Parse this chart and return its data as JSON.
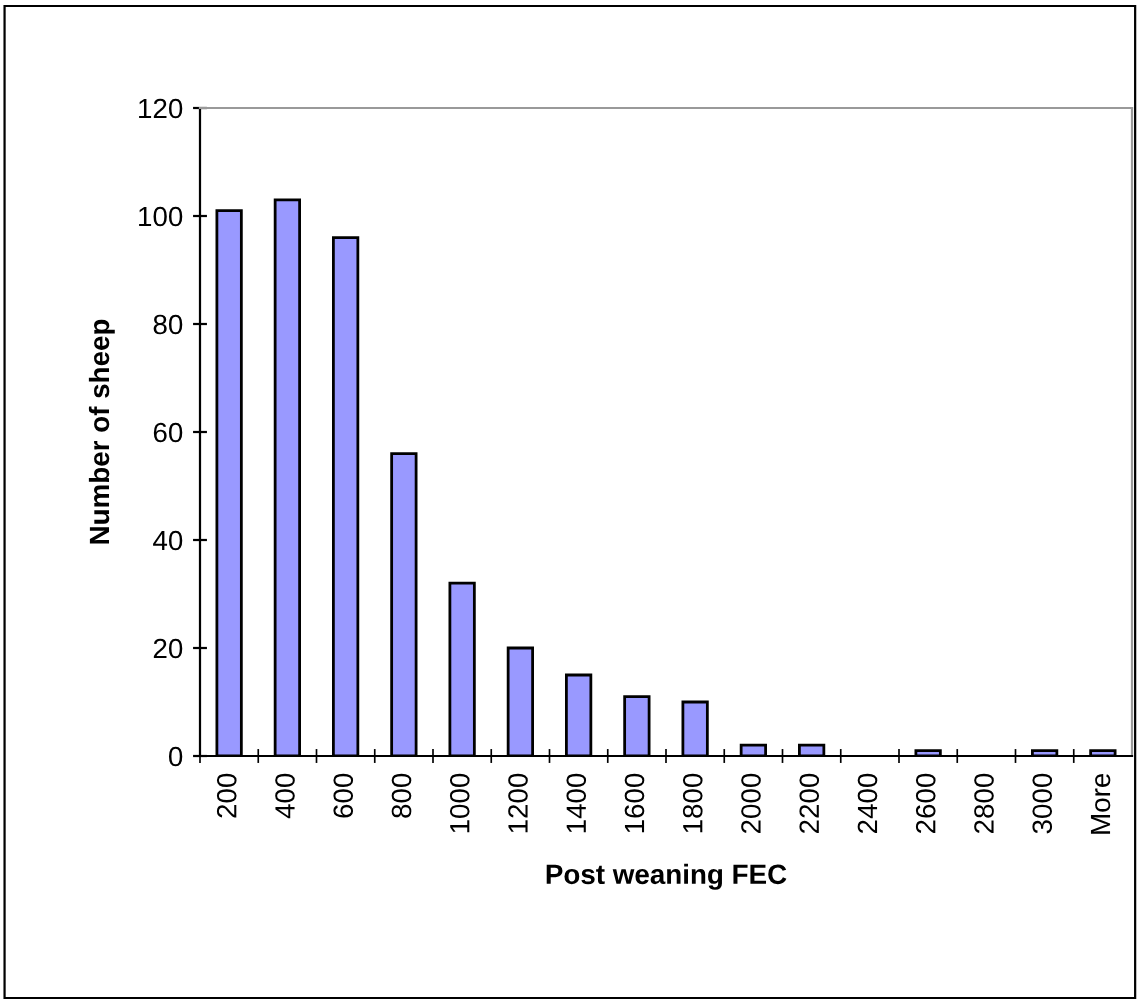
{
  "chart_data": {
    "type": "bar",
    "xlabel": "Post weaning FEC",
    "ylabel": "Number of sheep",
    "categories": [
      "200",
      "400",
      "600",
      "800",
      "1000",
      "1200",
      "1400",
      "1600",
      "1800",
      "2000",
      "2200",
      "2400",
      "2600",
      "2800",
      "3000",
      "More"
    ],
    "values": [
      101,
      103,
      96,
      56,
      32,
      20,
      15,
      11,
      10,
      2,
      2,
      0,
      1,
      0,
      1,
      1
    ],
    "color": "#9999ff",
    "ylim": [
      0,
      120
    ],
    "yticks": [
      0,
      20,
      40,
      60,
      80,
      100,
      120
    ],
    "grid": false,
    "legend": false
  }
}
